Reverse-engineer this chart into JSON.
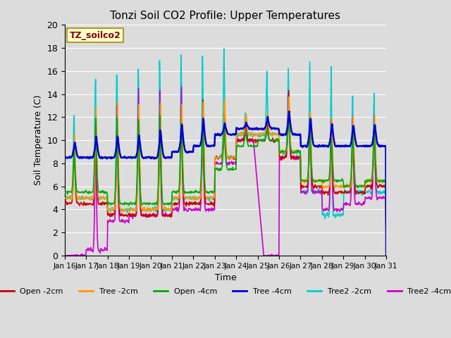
{
  "title": "Tonzi Soil CO2 Profile: Upper Temperatures",
  "xlabel": "Time",
  "ylabel": "Soil Temperature (C)",
  "ylim": [
    0,
    20
  ],
  "xlim": [
    0,
    15
  ],
  "background_color": "#dcdcdc",
  "plot_bg_color": "#dcdcdc",
  "grid_color": "white",
  "label_box_text": "TZ_soilco2",
  "label_box_color": "#ffffcc",
  "label_box_border": "#aa8800",
  "tick_labels": [
    "Jan 16",
    "Jan 17",
    "Jan 18",
    "Jan 19",
    "Jan 20",
    "Jan 21",
    "Jan 22",
    "Jan 23",
    "Jan 24",
    "Jan 25",
    "Jan 26",
    "Jan 27",
    "Jan 28",
    "Jan 29",
    "Jan 30",
    "Jan 31"
  ],
  "series": {
    "Open -2cm": {
      "color": "#cc0000",
      "lw": 1.2
    },
    "Tree -2cm": {
      "color": "#ff9900",
      "lw": 1.2
    },
    "Open -4cm": {
      "color": "#00aa00",
      "lw": 1.2
    },
    "Tree -4cm": {
      "color": "#0000cc",
      "lw": 1.8
    },
    "Tree2 -2cm": {
      "color": "#00cccc",
      "lw": 1.2
    },
    "Tree2 -4cm": {
      "color": "#cc00cc",
      "lw": 1.2
    }
  }
}
